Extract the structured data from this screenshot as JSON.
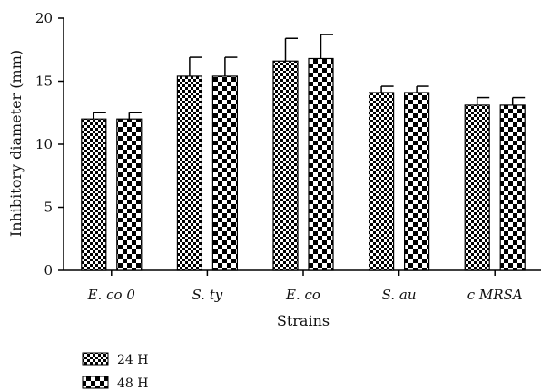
{
  "chart_data": {
    "type": "bar",
    "xlabel": "Strains",
    "ylabel": "Inhibitory diameter (mm)",
    "ylim": [
      0,
      20
    ],
    "yticks": [
      "0",
      "5",
      "10",
      "15",
      "20"
    ],
    "grid": false,
    "legend_position": "bottom-left",
    "categories": [
      "E. co 0",
      "S. ty",
      "E. co",
      "S. au",
      "c MRSA"
    ],
    "series": [
      {
        "name": "24 H",
        "pattern": "fine-checker",
        "values": [
          12.0,
          15.4,
          16.6,
          14.1,
          13.1
        ],
        "errors": [
          0.5,
          1.5,
          1.8,
          0.5,
          0.6
        ]
      },
      {
        "name": "48 H",
        "pattern": "coarse-checker",
        "values": [
          12.0,
          15.4,
          16.8,
          14.1,
          13.1
        ],
        "errors": [
          0.5,
          1.5,
          1.9,
          0.5,
          0.6
        ]
      }
    ]
  }
}
